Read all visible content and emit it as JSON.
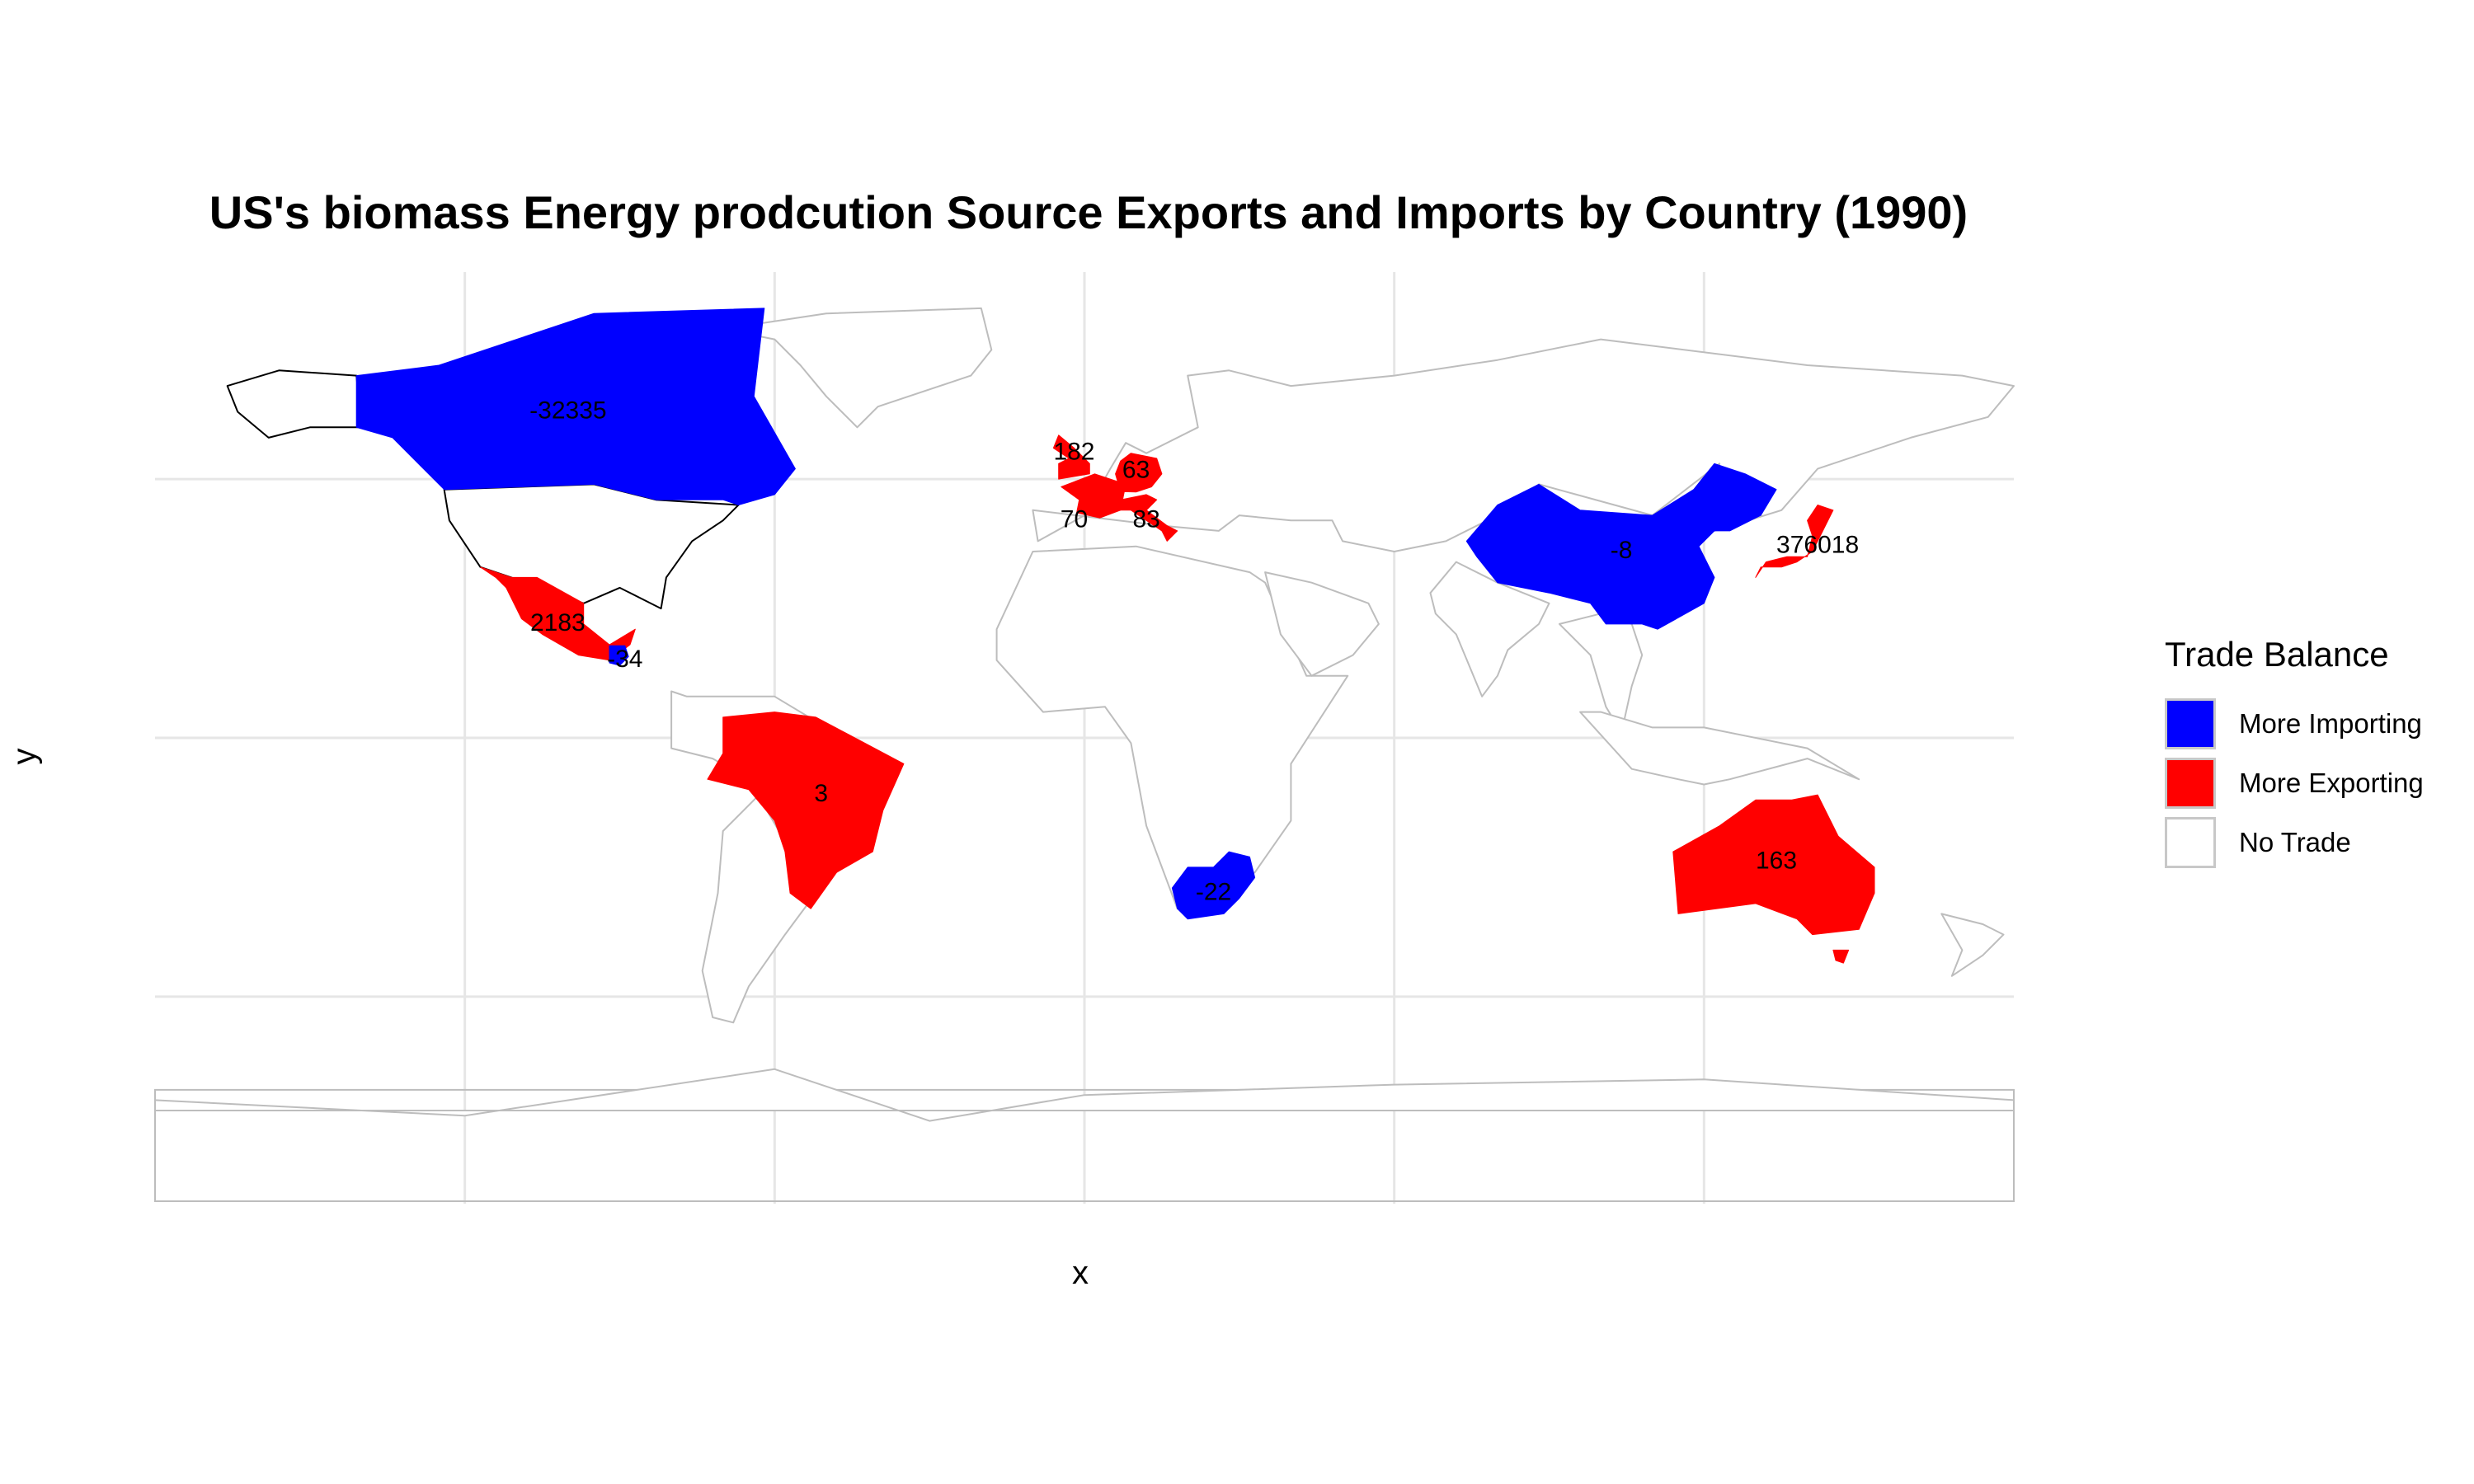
{
  "title": "US's biomass Energy prodcution Source Exports and Imports by Country (1990)",
  "x_label": "x",
  "y_label": "y",
  "legend": {
    "title": "Trade Balance",
    "items": [
      {
        "label": "More Importing",
        "color": "#0000ff"
      },
      {
        "label": "More Exporting",
        "color": "#ff0000"
      },
      {
        "label": "No Trade",
        "color": "#ffffff"
      }
    ]
  },
  "colors": {
    "importing": "#0000ff",
    "exporting": "#ff0000",
    "no_trade": "#ffffff",
    "borders": "#bdbdbd",
    "us_outline": "#000000",
    "grid": "#e6e6e6"
  },
  "chart_data": {
    "type": "map",
    "projection": "equirectangular",
    "lon_range": [
      -180,
      180
    ],
    "lat_range": [
      -90,
      90
    ],
    "graticule_lon": [
      -120,
      -60,
      0,
      60,
      120
    ],
    "graticule_lat": [
      -50,
      0,
      50
    ],
    "grid": true,
    "legend_position": "right",
    "countries": [
      {
        "name": "Canada",
        "trade": "More Importing",
        "value": "-32335"
      },
      {
        "name": "Mexico",
        "trade": "More Exporting",
        "value": "2183"
      },
      {
        "name": "Guatemala",
        "trade": "More Importing",
        "value": "-34"
      },
      {
        "name": "Brazil",
        "trade": "More Exporting",
        "value": "3"
      },
      {
        "name": "United Kingdom",
        "trade": "More Exporting",
        "value": "182"
      },
      {
        "name": "Germany",
        "trade": "More Exporting",
        "value": "63"
      },
      {
        "name": "France",
        "trade": "More Exporting",
        "value": "70"
      },
      {
        "name": "Italy",
        "trade": "More Exporting",
        "value": "83"
      },
      {
        "name": "China",
        "trade": "More Importing",
        "value": "-8"
      },
      {
        "name": "Japan",
        "trade": "More Exporting",
        "value": "376018"
      },
      {
        "name": "South Africa",
        "trade": "More Importing",
        "value": "-22"
      },
      {
        "name": "Australia",
        "trade": "More Exporting",
        "value": "163"
      }
    ]
  }
}
